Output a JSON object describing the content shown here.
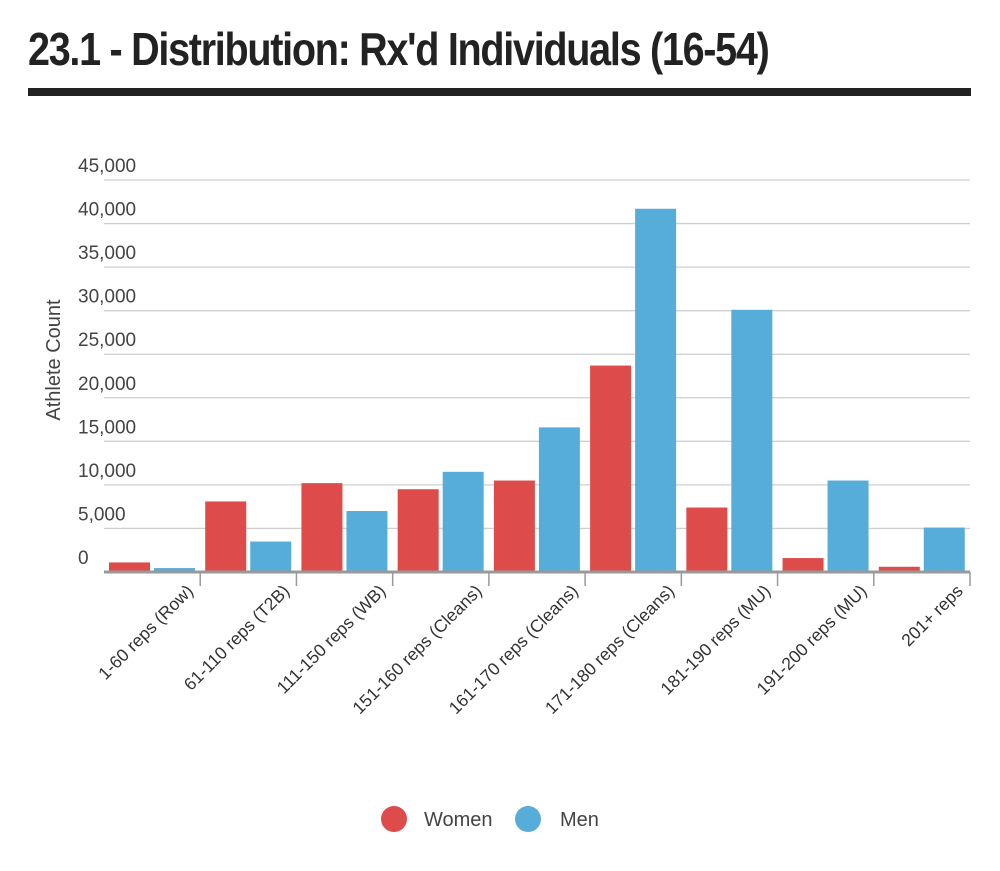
{
  "chart_data": {
    "type": "bar",
    "title": "23.1 - Distribution: Rx'd Individuals (16-54)",
    "ylabel": "Athlete Count",
    "xlabel": "",
    "ylim": [
      0,
      45000
    ],
    "yticks": [
      0,
      5000,
      10000,
      15000,
      20000,
      25000,
      30000,
      35000,
      40000,
      45000
    ],
    "ytick_labels": [
      "0",
      "5,000",
      "10,000",
      "15,000",
      "20,000",
      "25,000",
      "30,000",
      "35,000",
      "40,000",
      "45,000"
    ],
    "grid": true,
    "legend_position": "bottom-center",
    "categories": [
      "1-60 reps (Row)",
      "61-110 reps (T2B)",
      "111-150 reps (WB)",
      "151-160 reps (Cleans)",
      "161-170 reps (Cleans)",
      "171-180 reps (Cleans)",
      "181-190 reps (MU)",
      "191-200 reps (MU)",
      "201+ reps"
    ],
    "series": [
      {
        "name": "Women",
        "color": "#dd4b4b",
        "values": [
          1100,
          8100,
          10200,
          9500,
          10500,
          23700,
          7400,
          1600,
          600
        ]
      },
      {
        "name": "Men",
        "color": "#56add9",
        "values": [
          450,
          3500,
          7000,
          11500,
          16600,
          41700,
          30100,
          10500,
          5100
        ]
      }
    ]
  }
}
